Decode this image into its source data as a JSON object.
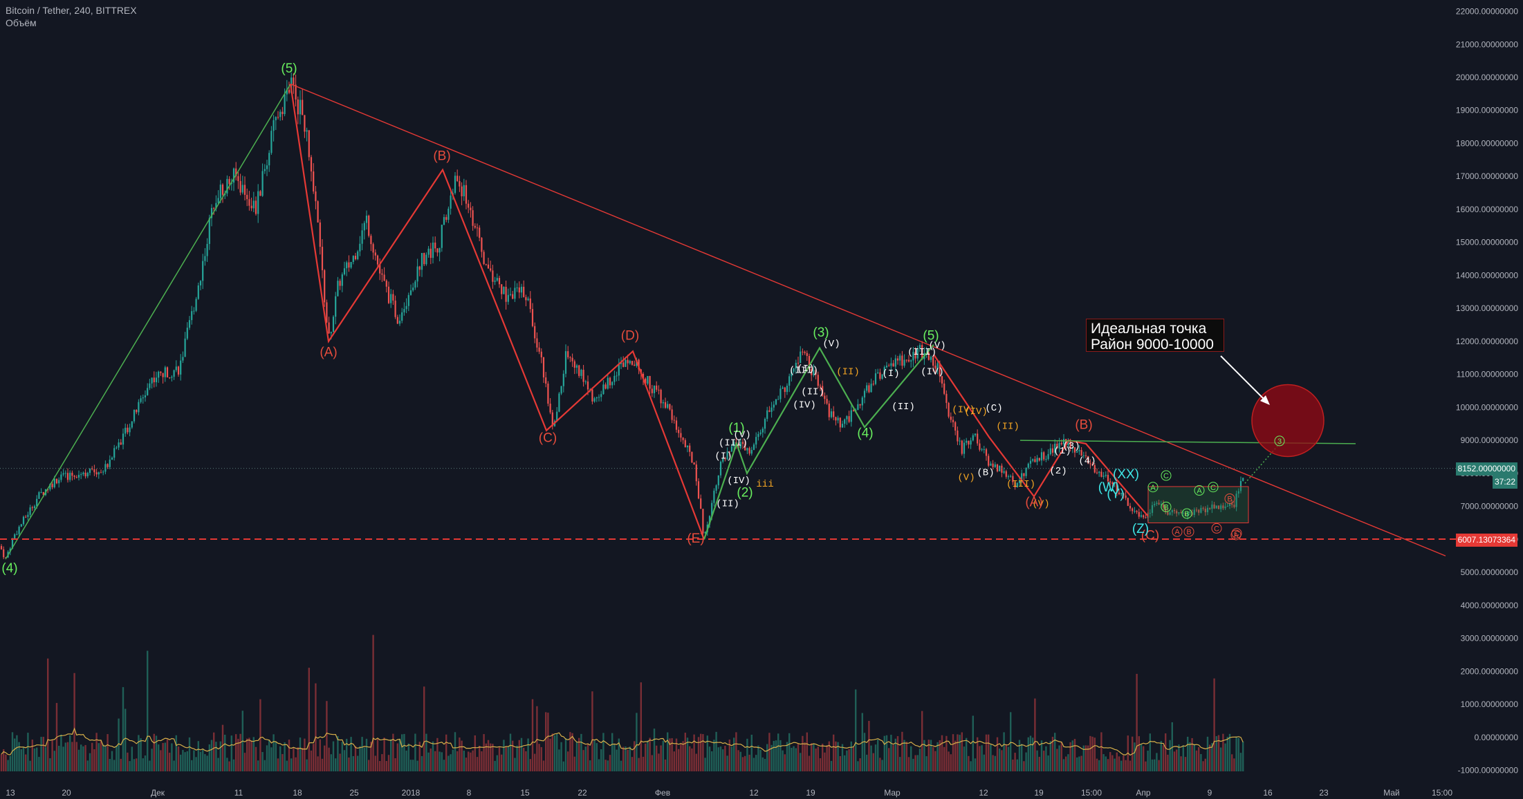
{
  "header": {
    "symbol": "Bitcoin / Tether, 240, BITTREX",
    "volume_label": "Объём"
  },
  "annotation": {
    "line1": "Идеальная точка",
    "line2": "Район 9000-10000"
  },
  "price_tags": {
    "current": "8152.00000000",
    "timer": "37:22",
    "support": "6007.13073364"
  },
  "colors": {
    "bg": "#131722",
    "up": "#26a69a",
    "down": "#ef5350",
    "green_line": "#4caf50",
    "red_line": "#e53935",
    "label_green": "#69f05f",
    "label_red": "#e74c3c",
    "label_orange": "#f5a623",
    "label_cyan": "#3ee6e6"
  },
  "chart_data": {
    "type": "candlestick",
    "title": "Bitcoin / Tether, 240, BITTREX",
    "ylim": [
      -1000,
      22000
    ],
    "y_ticks": [
      "22000.00000000",
      "21000.00000000",
      "20000.00000000",
      "19000.00000000",
      "18000.00000000",
      "17000.00000000",
      "16000.00000000",
      "15000.00000000",
      "14000.00000000",
      "13000.00000000",
      "12000.00000000",
      "11000.00000000",
      "10000.00000000",
      "9000.00000000",
      "8000.00000000",
      "7000.00000000",
      "6000.00000000",
      "5000.00000000",
      "4000.00000000",
      "3000.00000000",
      "2000.00000000",
      "1000.00000000",
      "0.00000000",
      "-1000.00000000"
    ],
    "x_ticks": [
      "13",
      "20",
      "Дек",
      "11",
      "18",
      "25",
      "2018",
      "8",
      "15",
      "22",
      "Фев",
      "12",
      "19",
      "Мар",
      "12",
      "19",
      "15:00",
      "Апр",
      "9",
      "16",
      "23",
      "Май",
      "15:00"
    ],
    "price_path": [
      [
        0,
        5800
      ],
      [
        8,
        5400
      ],
      [
        20,
        6100
      ],
      [
        55,
        7300
      ],
      [
        80,
        7800
      ],
      [
        110,
        8000
      ],
      [
        150,
        8100
      ],
      [
        190,
        9600
      ],
      [
        220,
        10900
      ],
      [
        260,
        11200
      ],
      [
        290,
        14000
      ],
      [
        310,
        16400
      ],
      [
        340,
        17000
      ],
      [
        370,
        16000
      ],
      [
        400,
        18800
      ],
      [
        420,
        19800
      ],
      [
        440,
        18700
      ],
      [
        460,
        15400
      ],
      [
        475,
        12000
      ],
      [
        490,
        13800
      ],
      [
        510,
        14500
      ],
      [
        530,
        15700
      ],
      [
        550,
        14000
      ],
      [
        575,
        12700
      ],
      [
        590,
        13400
      ],
      [
        610,
        14500
      ],
      [
        635,
        15000
      ],
      [
        660,
        17000
      ],
      [
        680,
        16000
      ],
      [
        700,
        14400
      ],
      [
        730,
        13400
      ],
      [
        760,
        13500
      ],
      [
        785,
        11200
      ],
      [
        800,
        9200
      ],
      [
        818,
        11600
      ],
      [
        840,
        11000
      ],
      [
        860,
        10200
      ],
      [
        880,
        10800
      ],
      [
        910,
        11600
      ],
      [
        935,
        10800
      ],
      [
        960,
        10200
      ],
      [
        985,
        9100
      ],
      [
        1005,
        8200
      ],
      [
        1018,
        6000
      ],
      [
        1040,
        8200
      ],
      [
        1065,
        8900
      ],
      [
        1085,
        8600
      ],
      [
        1110,
        9800
      ],
      [
        1140,
        10800
      ],
      [
        1160,
        11700
      ],
      [
        1180,
        10800
      ],
      [
        1200,
        9800
      ],
      [
        1218,
        9400
      ],
      [
        1240,
        10100
      ],
      [
        1270,
        11000
      ],
      [
        1300,
        11400
      ],
      [
        1330,
        11700
      ],
      [
        1355,
        11300
      ],
      [
        1370,
        9900
      ],
      [
        1390,
        8700
      ],
      [
        1410,
        9100
      ],
      [
        1430,
        8300
      ],
      [
        1450,
        8100
      ],
      [
        1470,
        7600
      ],
      [
        1490,
        8400
      ],
      [
        1515,
        8600
      ],
      [
        1540,
        9000
      ],
      [
        1565,
        8600
      ],
      [
        1585,
        8000
      ],
      [
        1600,
        7900
      ],
      [
        1620,
        7400
      ],
      [
        1640,
        6800
      ],
      [
        1655,
        6600
      ],
      [
        1670,
        7200
      ],
      [
        1690,
        6800
      ],
      [
        1710,
        6700
      ],
      [
        1735,
        6900
      ],
      [
        1760,
        7000
      ],
      [
        1785,
        7100
      ],
      [
        1800,
        8152
      ]
    ],
    "volume_ylim": [
      -1000,
      5000
    ],
    "support_level": 6007.13,
    "resistance_level": 8900,
    "wave_labels": [
      {
        "text": "(4)",
        "color": "green"
      },
      {
        "text": "(5)",
        "color": "green"
      },
      {
        "text": "(A)",
        "color": "red"
      },
      {
        "text": "(B)",
        "color": "red"
      },
      {
        "text": "(C)",
        "color": "red"
      },
      {
        "text": "(D)",
        "color": "red"
      },
      {
        "text": "(E)",
        "color": "red"
      },
      {
        "text": "(1)",
        "color": "green"
      },
      {
        "text": "(2)",
        "color": "green"
      },
      {
        "text": "(3)",
        "color": "green"
      },
      {
        "text": "(4)",
        "color": "green"
      },
      {
        "text": "(5)",
        "color": "green"
      },
      {
        "text": "(I)",
        "color": "white"
      },
      {
        "text": "(II)",
        "color": "white"
      },
      {
        "text": "(III)",
        "color": "white"
      },
      {
        "text": "(IV)",
        "color": "white"
      },
      {
        "text": "(V)",
        "color": "white"
      },
      {
        "text": "(I)",
        "color": "white"
      },
      {
        "text": "(II)",
        "color": "white"
      },
      {
        "text": "(III)",
        "color": "white"
      },
      {
        "text": "(IV)",
        "color": "white"
      },
      {
        "text": "(V)",
        "color": "white"
      },
      {
        "text": "(I)",
        "color": "white"
      },
      {
        "text": "(II)",
        "color": "white"
      },
      {
        "text": "(III)",
        "color": "white"
      },
      {
        "text": "(IV)",
        "color": "white"
      },
      {
        "text": "(V)",
        "color": "white"
      },
      {
        "text": "(II)",
        "color": "orange"
      },
      {
        "text": "(IV)",
        "color": "orange"
      },
      {
        "text": "(V)",
        "color": "orange"
      },
      {
        "text": "iii",
        "color": "orange"
      },
      {
        "text": "(C)",
        "color": "white"
      },
      {
        "text": "(B)",
        "color": "white"
      },
      {
        "text": "(II)",
        "color": "orange"
      },
      {
        "text": "(IV)",
        "color": "orange"
      },
      {
        "text": "(III)",
        "color": "orange"
      },
      {
        "text": "(V)",
        "color": "orange"
      },
      {
        "text": "(A)",
        "color": "red"
      },
      {
        "text": "(B)",
        "color": "red"
      },
      {
        "text": "(C)",
        "color": "red"
      },
      {
        "text": "(1)",
        "color": "white"
      },
      {
        "text": "(2)",
        "color": "white"
      },
      {
        "text": "(3)",
        "color": "white"
      },
      {
        "text": "(4)",
        "color": "white"
      },
      {
        "text": "(XX)",
        "color": "cyan"
      },
      {
        "text": "(W)",
        "color": "cyan"
      },
      {
        "text": "(Y)",
        "color": "cyan"
      },
      {
        "text": "(Z)",
        "color": "cyan"
      },
      {
        "text": "A",
        "color": "green"
      },
      {
        "text": "B",
        "color": "green"
      },
      {
        "text": "C",
        "color": "green"
      },
      {
        "text": "A",
        "color": "green"
      },
      {
        "text": "B",
        "color": "green"
      },
      {
        "text": "C",
        "color": "green"
      },
      {
        "text": "A",
        "color": "red"
      },
      {
        "text": "B",
        "color": "red"
      },
      {
        "text": "C",
        "color": "red"
      },
      {
        "text": "A",
        "color": "red"
      },
      {
        "text": "B",
        "color": "red"
      },
      {
        "text": "C",
        "color": "red"
      },
      {
        "text": "3",
        "color": "green"
      }
    ]
  }
}
